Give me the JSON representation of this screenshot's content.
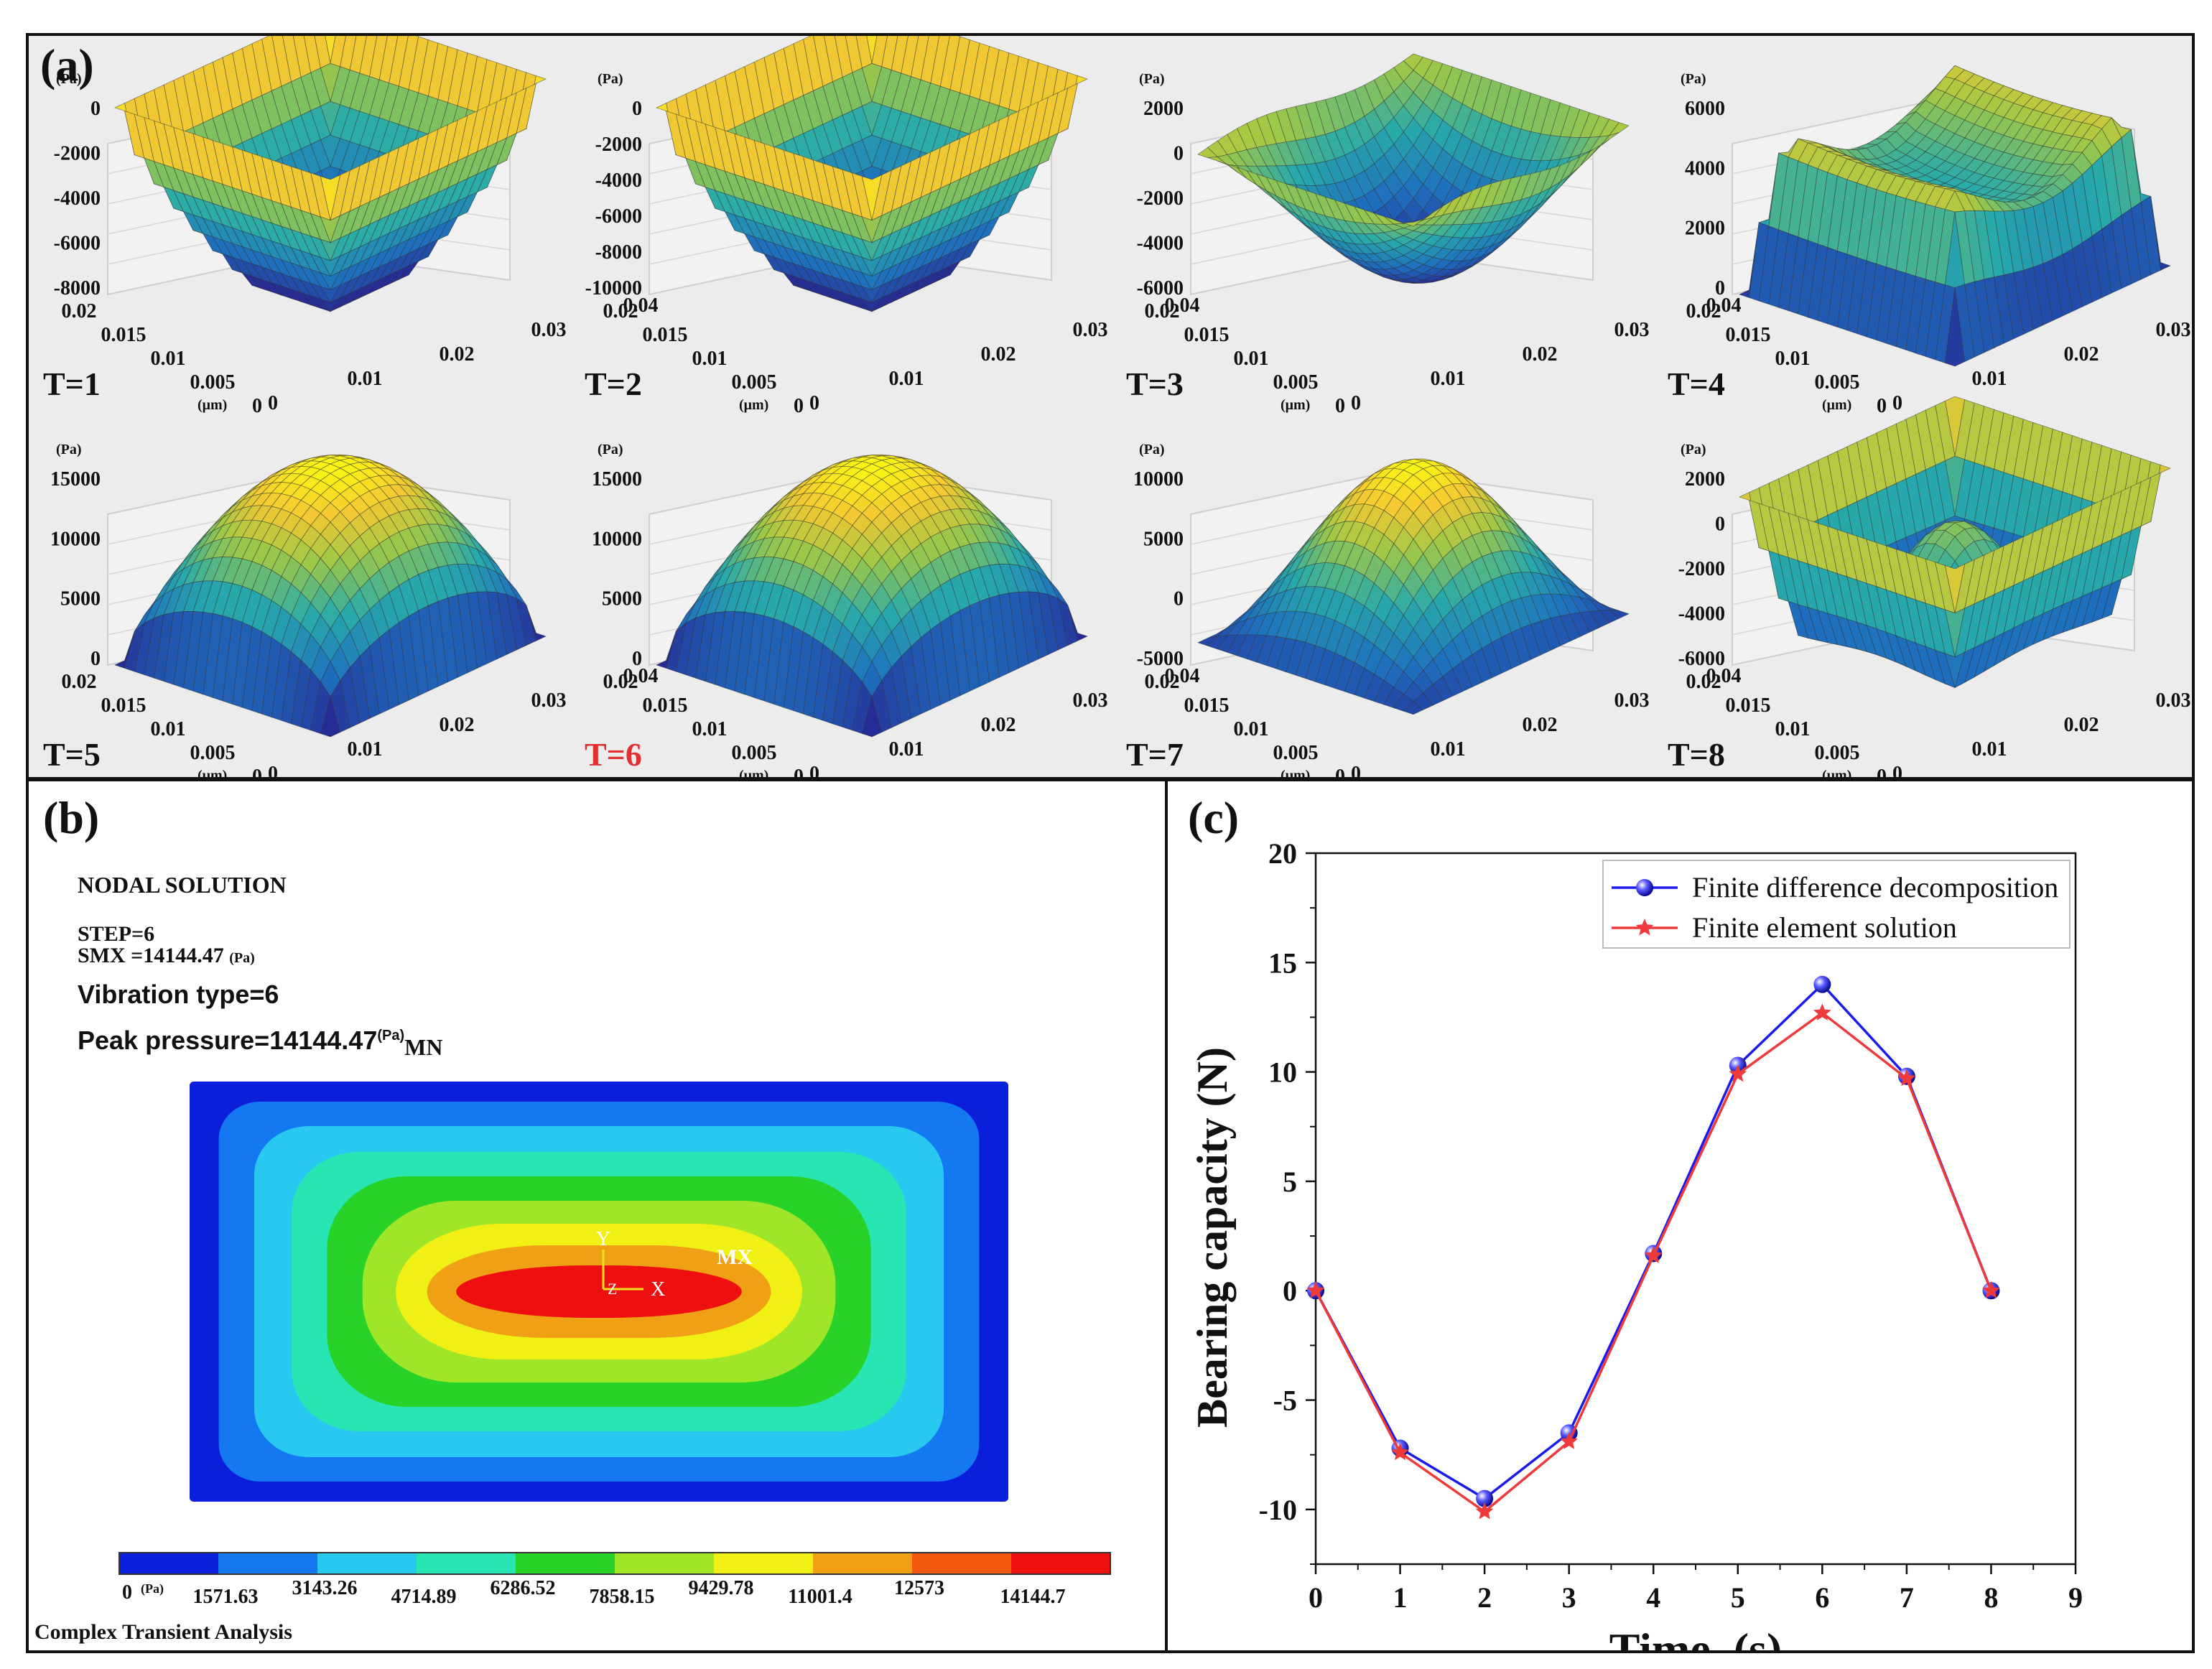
{
  "panel_a": {
    "label": "(a)",
    "unit_z": "(Pa)",
    "unit_x": "(μm)",
    "x_ticks": [
      "0",
      "0.01",
      "0.02",
      "0.03",
      "0.04"
    ],
    "y_ticks": [
      "0.02",
      "0.015",
      "0.01",
      "0.005",
      "0"
    ],
    "subplots": [
      {
        "label": "T=1",
        "z_ticks": [
          "0",
          "-2000",
          "-4000",
          "-6000",
          "-8000"
        ],
        "shape": "bowl"
      },
      {
        "label": "T=2",
        "z_ticks": [
          "0",
          "-2000",
          "-4000",
          "-6000",
          "-8000",
          "-10000"
        ],
        "shape": "bowl"
      },
      {
        "label": "T=3",
        "z_ticks": [
          "2000",
          "0",
          "-2000",
          "-4000",
          "-6000"
        ],
        "shape": "bowl-rim"
      },
      {
        "label": "T=4",
        "z_ticks": [
          "6000",
          "4000",
          "2000",
          "0"
        ],
        "shape": "plateau-dip"
      },
      {
        "label": "T=5",
        "z_ticks": [
          "15000",
          "10000",
          "5000",
          "0"
        ],
        "shape": "dome"
      },
      {
        "label": "T=6",
        "z_ticks": [
          "15000",
          "10000",
          "5000",
          "0"
        ],
        "shape": "dome",
        "highlight": "#e03030"
      },
      {
        "label": "T=7",
        "z_ticks": [
          "10000",
          "5000",
          "0",
          "-5000"
        ],
        "shape": "dome-flat"
      },
      {
        "label": "T=8",
        "z_ticks": [
          "2000",
          "0",
          "-2000",
          "-4000",
          "-6000"
        ],
        "shape": "basin-bump"
      }
    ]
  },
  "panel_b": {
    "label": "(b)",
    "title": "NODAL SOLUTION",
    "step": "STEP=6",
    "smx": "SMX =14144.47",
    "smx_unit": "(Pa)",
    "vibration": "Vibration type=6",
    "peak": "Peak pressure=14144.47",
    "peak_unit": "(Pa)",
    "mn": "MN",
    "mx": "MX",
    "axis_y": "Y",
    "axis_x": "X",
    "axis_z": "Z",
    "colorbar_colors": [
      "#0a1edc",
      "#1478f0",
      "#28c8f0",
      "#28e6b4",
      "#28d228",
      "#a0e628",
      "#f0f014",
      "#f0a014",
      "#f05a0a",
      "#ee1010"
    ],
    "colorbar_low": "0",
    "colorbar_low_unit": "(Pa)",
    "colorbar_ticks": [
      "1571.63",
      "3143.26",
      "4714.89",
      "6286.52",
      "7858.15",
      "9429.78",
      "11001.4",
      "12573",
      "14144.7"
    ],
    "footer": "Complex Transient Analysis"
  },
  "panel_c": {
    "label": "(c)"
  },
  "chart_data": {
    "type": "line",
    "xlabel": "Time (s)",
    "ylabel": "Bearing capacity (N)",
    "xlim": [
      0,
      9
    ],
    "ylim": [
      -12.5,
      20
    ],
    "x_ticks": [
      0,
      1,
      2,
      3,
      4,
      5,
      6,
      7,
      8,
      9
    ],
    "y_ticks": [
      20,
      15,
      10,
      5,
      0,
      -5,
      -10
    ],
    "x": [
      0,
      1,
      2,
      3,
      4,
      5,
      6,
      7,
      8
    ],
    "legend_position": "top-right",
    "series": [
      {
        "name": "Finite difference decomposition",
        "color": "#1a1aee",
        "marker": "sphere",
        "values": [
          0,
          -7.2,
          -9.5,
          -6.5,
          1.7,
          10.3,
          14.0,
          9.8,
          0
        ]
      },
      {
        "name": "Finite element solution",
        "color": "#ee3a3a",
        "marker": "star",
        "values": [
          0,
          -7.4,
          -10.1,
          -6.9,
          1.6,
          9.9,
          12.7,
          9.7,
          0
        ]
      }
    ]
  }
}
